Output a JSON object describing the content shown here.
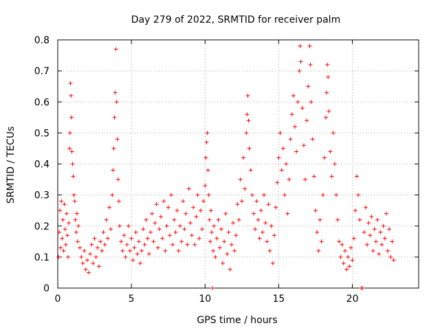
{
  "chart_data": {
    "type": "scatter",
    "title": "Day 279 of 2022, SRMTID for receiver palm",
    "xlabel": "GPS time / hours",
    "ylabel": "SRMTID / TECUs",
    "xlim": [
      0,
      24.5
    ],
    "ylim": [
      0,
      0.8
    ],
    "xticks": [
      0,
      5,
      10,
      15,
      20
    ],
    "xtick_labels": [
      "0",
      "5",
      "10",
      "15",
      "20"
    ],
    "yticks": [
      0,
      0.1,
      0.2,
      0.3,
      0.4,
      0.5,
      0.6,
      0.7,
      0.8
    ],
    "ytick_labels": [
      "0",
      "0.1",
      "0.2",
      "0.3",
      "0.4",
      "0.5",
      "0.6",
      "0.7",
      "0.8"
    ],
    "grid": true,
    "marker": "+",
    "color": "#ff0000",
    "series": [
      {
        "name": "SRMTID",
        "points": [
          [
            0.05,
            0.1
          ],
          [
            0.1,
            0.18
          ],
          [
            0.15,
            0.25
          ],
          [
            0.2,
            0.13
          ],
          [
            0.25,
            0.28
          ],
          [
            0.3,
            0.16
          ],
          [
            0.35,
            0.22
          ],
          [
            0.4,
            0.12
          ],
          [
            0.45,
            0.27
          ],
          [
            0.5,
            0.19
          ],
          [
            0.55,
            0.14
          ],
          [
            0.6,
            0.24
          ],
          [
            0.65,
            0.17
          ],
          [
            0.7,
            0.1
          ],
          [
            0.75,
            0.21
          ],
          [
            0.8,
            0.45
          ],
          [
            0.83,
            0.5
          ],
          [
            0.86,
            0.66
          ],
          [
            0.9,
            0.62
          ],
          [
            0.93,
            0.55
          ],
          [
            0.96,
            0.44
          ],
          [
            1.0,
            0.4
          ],
          [
            1.05,
            0.36
          ],
          [
            1.1,
            0.3
          ],
          [
            1.15,
            0.28
          ],
          [
            1.2,
            0.22
          ],
          [
            1.25,
            0.18
          ],
          [
            1.3,
            0.24
          ],
          [
            1.35,
            0.15
          ],
          [
            1.4,
            0.2
          ],
          [
            1.5,
            0.13
          ],
          [
            1.6,
            0.1
          ],
          [
            1.7,
            0.08
          ],
          [
            1.8,
            0.12
          ],
          [
            1.9,
            0.06
          ],
          [
            2.0,
            0.09
          ],
          [
            2.1,
            0.05
          ],
          [
            2.2,
            0.11
          ],
          [
            2.3,
            0.14
          ],
          [
            2.4,
            0.08
          ],
          [
            2.5,
            0.16
          ],
          [
            2.6,
            0.1
          ],
          [
            2.7,
            0.13
          ],
          [
            2.8,
            0.07
          ],
          [
            2.9,
            0.15
          ],
          [
            3.0,
            0.12
          ],
          [
            3.1,
            0.18
          ],
          [
            3.2,
            0.14
          ],
          [
            3.3,
            0.22
          ],
          [
            3.4,
            0.16
          ],
          [
            3.5,
            0.26
          ],
          [
            3.6,
            0.19
          ],
          [
            3.7,
            0.3
          ],
          [
            3.75,
            0.38
          ],
          [
            3.8,
            0.45
          ],
          [
            3.85,
            0.55
          ],
          [
            3.9,
            0.63
          ],
          [
            3.95,
            0.77
          ],
          [
            4.0,
            0.6
          ],
          [
            4.05,
            0.48
          ],
          [
            4.1,
            0.35
          ],
          [
            4.15,
            0.28
          ],
          [
            4.2,
            0.2
          ],
          [
            4.3,
            0.15
          ],
          [
            4.4,
            0.12
          ],
          [
            4.5,
            0.17
          ],
          [
            4.6,
            0.1
          ],
          [
            4.7,
            0.14
          ],
          [
            4.8,
            0.2
          ],
          [
            4.9,
            0.12
          ],
          [
            5.0,
            0.16
          ],
          [
            5.1,
            0.09
          ],
          [
            5.2,
            0.13
          ],
          [
            5.3,
            0.18
          ],
          [
            5.4,
            0.11
          ],
          [
            5.5,
            0.15
          ],
          [
            5.6,
            0.08
          ],
          [
            5.7,
            0.12
          ],
          [
            5.8,
            0.19
          ],
          [
            5.9,
            0.14
          ],
          [
            6.0,
            0.22
          ],
          [
            6.1,
            0.16
          ],
          [
            6.2,
            0.11
          ],
          [
            6.3,
            0.18
          ],
          [
            6.4,
            0.24
          ],
          [
            6.5,
            0.15
          ],
          [
            6.6,
            0.21
          ],
          [
            6.7,
            0.27
          ],
          [
            6.8,
            0.13
          ],
          [
            6.9,
            0.19
          ],
          [
            7.0,
            0.23
          ],
          [
            7.1,
            0.16
          ],
          [
            7.2,
            0.28
          ],
          [
            7.3,
            0.12
          ],
          [
            7.4,
            0.2
          ],
          [
            7.5,
            0.26
          ],
          [
            7.6,
            0.17
          ],
          [
            7.7,
            0.3
          ],
          [
            7.8,
            0.14
          ],
          [
            7.9,
            0.22
          ],
          [
            8.0,
            0.18
          ],
          [
            8.1,
            0.25
          ],
          [
            8.2,
            0.12
          ],
          [
            8.3,
            0.2
          ],
          [
            8.4,
            0.15
          ],
          [
            8.5,
            0.28
          ],
          [
            8.6,
            0.19
          ],
          [
            8.7,
            0.24
          ],
          [
            8.8,
            0.14
          ],
          [
            8.9,
            0.32
          ],
          [
            9.0,
            0.21
          ],
          [
            9.1,
            0.17
          ],
          [
            9.2,
            0.26
          ],
          [
            9.3,
            0.14
          ],
          [
            9.4,
            0.23
          ],
          [
            9.5,
            0.3
          ],
          [
            9.6,
            0.16
          ],
          [
            9.7,
            0.25
          ],
          [
            9.8,
            0.19
          ],
          [
            9.9,
            0.28
          ],
          [
            10.0,
            0.33
          ],
          [
            10.05,
            0.42
          ],
          [
            10.1,
            0.47
          ],
          [
            10.15,
            0.5
          ],
          [
            10.2,
            0.38
          ],
          [
            10.25,
            0.3
          ],
          [
            10.3,
            0.22
          ],
          [
            10.35,
            0.15
          ],
          [
            10.4,
            0.25
          ],
          [
            10.45,
            0.18
          ],
          [
            10.5,
            0.0
          ],
          [
            10.55,
            0.12
          ],
          [
            10.6,
            0.2
          ],
          [
            10.7,
            0.1
          ],
          [
            10.8,
            0.16
          ],
          [
            10.9,
            0.22
          ],
          [
            11.0,
            0.13
          ],
          [
            11.1,
            0.19
          ],
          [
            11.2,
            0.08
          ],
          [
            11.3,
            0.15
          ],
          [
            11.4,
            0.24
          ],
          [
            11.5,
            0.11
          ],
          [
            11.6,
            0.18
          ],
          [
            11.7,
            0.06
          ],
          [
            11.8,
            0.14
          ],
          [
            11.9,
            0.21
          ],
          [
            12.0,
            0.12
          ],
          [
            12.1,
            0.17
          ],
          [
            12.2,
            0.27
          ],
          [
            12.3,
            0.22
          ],
          [
            12.4,
            0.35
          ],
          [
            12.5,
            0.28
          ],
          [
            12.6,
            0.42
          ],
          [
            12.7,
            0.32
          ],
          [
            12.8,
            0.5
          ],
          [
            12.85,
            0.56
          ],
          [
            12.9,
            0.62
          ],
          [
            12.95,
            0.54
          ],
          [
            13.0,
            0.45
          ],
          [
            13.1,
            0.38
          ],
          [
            13.2,
            0.3
          ],
          [
            13.3,
            0.24
          ],
          [
            13.4,
            0.19
          ],
          [
            13.5,
            0.28
          ],
          [
            13.6,
            0.22
          ],
          [
            13.7,
            0.16
          ],
          [
            13.8,
            0.25
          ],
          [
            13.9,
            0.18
          ],
          [
            14.0,
            0.3
          ],
          [
            14.1,
            0.21
          ],
          [
            14.2,
            0.15
          ],
          [
            14.3,
            0.27
          ],
          [
            14.4,
            0.12
          ],
          [
            14.5,
            0.2
          ],
          [
            14.6,
            0.08
          ],
          [
            14.7,
            0.17
          ],
          [
            14.8,
            0.26
          ],
          [
            14.9,
            0.34
          ],
          [
            15.0,
            0.42
          ],
          [
            15.1,
            0.5
          ],
          [
            15.2,
            0.38
          ],
          [
            15.3,
            0.45
          ],
          [
            15.4,
            0.3
          ],
          [
            15.5,
            0.4
          ],
          [
            15.6,
            0.24
          ],
          [
            15.7,
            0.35
          ],
          [
            15.8,
            0.48
          ],
          [
            15.9,
            0.56
          ],
          [
            16.0,
            0.62
          ],
          [
            16.1,
            0.52
          ],
          [
            16.2,
            0.44
          ],
          [
            16.3,
            0.6
          ],
          [
            16.4,
            0.7
          ],
          [
            16.45,
            0.78
          ],
          [
            16.5,
            0.73
          ],
          [
            16.6,
            0.58
          ],
          [
            16.7,
            0.46
          ],
          [
            16.8,
            0.35
          ],
          [
            16.9,
            0.54
          ],
          [
            17.0,
            0.65
          ],
          [
            17.1,
            0.78
          ],
          [
            17.15,
            0.72
          ],
          [
            17.2,
            0.6
          ],
          [
            17.3,
            0.48
          ],
          [
            17.4,
            0.36
          ],
          [
            17.5,
            0.25
          ],
          [
            17.6,
            0.18
          ],
          [
            17.7,
            0.12
          ],
          [
            17.8,
            0.22
          ],
          [
            17.9,
            0.15
          ],
          [
            18.0,
            0.3
          ],
          [
            18.1,
            0.42
          ],
          [
            18.2,
            0.55
          ],
          [
            18.25,
            0.63
          ],
          [
            18.3,
            0.72
          ],
          [
            18.35,
            0.68
          ],
          [
            18.4,
            0.57
          ],
          [
            18.5,
            0.44
          ],
          [
            18.6,
            0.36
          ],
          [
            18.7,
            0.5
          ],
          [
            18.8,
            0.4
          ],
          [
            18.9,
            0.3
          ],
          [
            19.0,
            0.22
          ],
          [
            19.1,
            0.15
          ],
          [
            19.2,
            0.1
          ],
          [
            19.3,
            0.14
          ],
          [
            19.4,
            0.08
          ],
          [
            19.5,
            0.12
          ],
          [
            19.6,
            0.06
          ],
          [
            19.7,
            0.1
          ],
          [
            19.8,
            0.07
          ],
          [
            19.9,
            0.13
          ],
          [
            20.0,
            0.09
          ],
          [
            20.1,
            0.16
          ],
          [
            20.2,
            0.25
          ],
          [
            20.3,
            0.36
          ],
          [
            20.4,
            0.3
          ],
          [
            20.5,
            0.22
          ],
          [
            20.6,
            0.0
          ],
          [
            20.7,
            0.0
          ],
          [
            20.8,
            0.18
          ],
          [
            20.9,
            0.26
          ],
          [
            21.0,
            0.14
          ],
          [
            21.1,
            0.21
          ],
          [
            21.2,
            0.17
          ],
          [
            21.3,
            0.23
          ],
          [
            21.4,
            0.12
          ],
          [
            21.5,
            0.19
          ],
          [
            21.6,
            0.15
          ],
          [
            21.7,
            0.22
          ],
          [
            21.8,
            0.11
          ],
          [
            21.9,
            0.18
          ],
          [
            22.0,
            0.14
          ],
          [
            22.1,
            0.2
          ],
          [
            22.2,
            0.16
          ],
          [
            22.3,
            0.24
          ],
          [
            22.4,
            0.12
          ],
          [
            22.5,
            0.19
          ],
          [
            22.6,
            0.1
          ],
          [
            22.7,
            0.15
          ],
          [
            22.8,
            0.09
          ]
        ]
      }
    ]
  }
}
